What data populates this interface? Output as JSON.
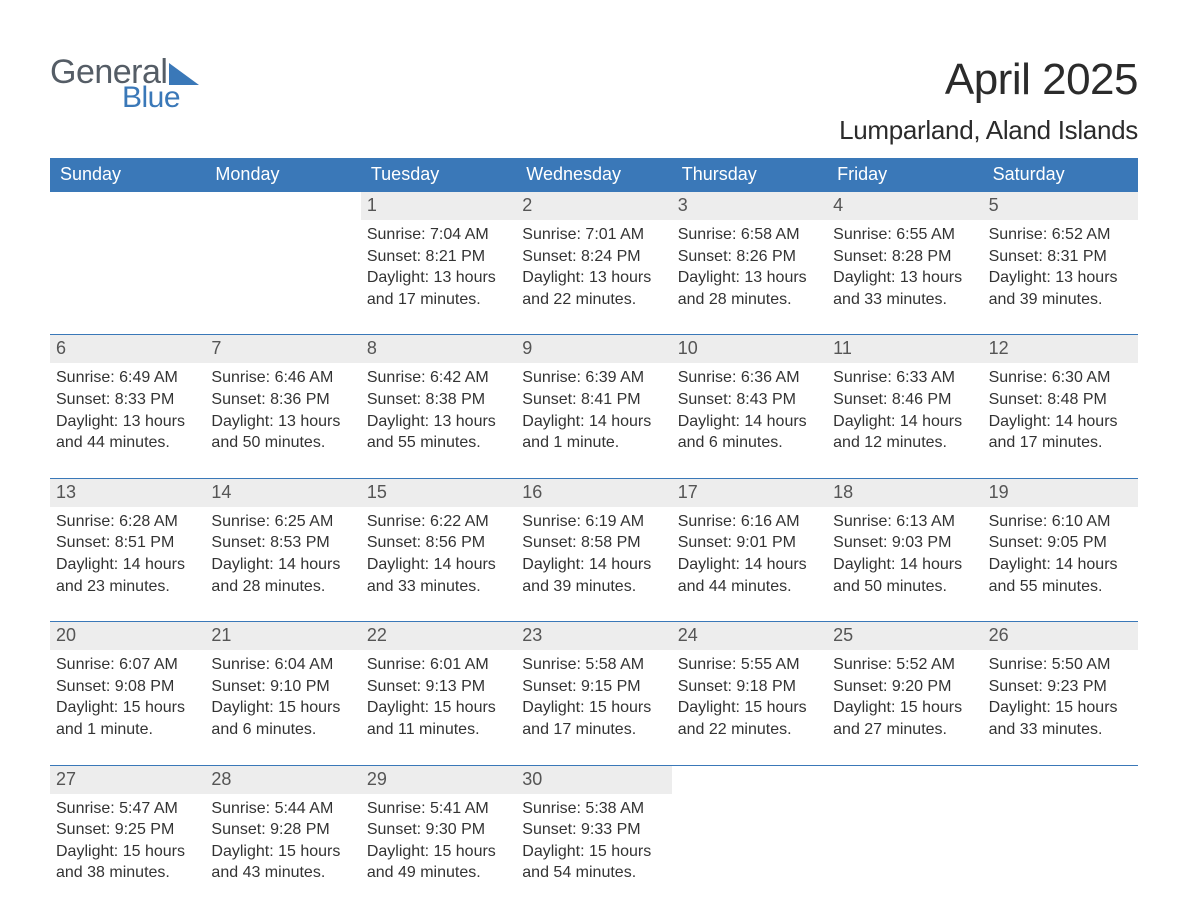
{
  "logo": {
    "word1": "General",
    "word2": "Blue"
  },
  "title": "April 2025",
  "location": "Lumparland, Aland Islands",
  "colors": {
    "brand_blue": "#3a78b8",
    "header_bg": "#3a78b8",
    "header_text": "#ffffff",
    "daynum_bg": "#ededed",
    "body_text": "#333333",
    "background": "#ffffff"
  },
  "layout": {
    "columns": 7,
    "weeks": 5,
    "font_family": "Arial",
    "title_fontsize": 44,
    "location_fontsize": 26,
    "header_fontsize": 18,
    "daynum_fontsize": 18,
    "body_fontsize": 16
  },
  "day_headers": [
    "Sunday",
    "Monday",
    "Tuesday",
    "Wednesday",
    "Thursday",
    "Friday",
    "Saturday"
  ],
  "labels": {
    "sunrise": "Sunrise:",
    "sunset": "Sunset:",
    "daylight": "Daylight:"
  },
  "weeks": [
    [
      null,
      null,
      {
        "n": "1",
        "sunrise": "7:04 AM",
        "sunset": "8:21 PM",
        "daylight": "13 hours and 17 minutes."
      },
      {
        "n": "2",
        "sunrise": "7:01 AM",
        "sunset": "8:24 PM",
        "daylight": "13 hours and 22 minutes."
      },
      {
        "n": "3",
        "sunrise": "6:58 AM",
        "sunset": "8:26 PM",
        "daylight": "13 hours and 28 minutes."
      },
      {
        "n": "4",
        "sunrise": "6:55 AM",
        "sunset": "8:28 PM",
        "daylight": "13 hours and 33 minutes."
      },
      {
        "n": "5",
        "sunrise": "6:52 AM",
        "sunset": "8:31 PM",
        "daylight": "13 hours and 39 minutes."
      }
    ],
    [
      {
        "n": "6",
        "sunrise": "6:49 AM",
        "sunset": "8:33 PM",
        "daylight": "13 hours and 44 minutes."
      },
      {
        "n": "7",
        "sunrise": "6:46 AM",
        "sunset": "8:36 PM",
        "daylight": "13 hours and 50 minutes."
      },
      {
        "n": "8",
        "sunrise": "6:42 AM",
        "sunset": "8:38 PM",
        "daylight": "13 hours and 55 minutes."
      },
      {
        "n": "9",
        "sunrise": "6:39 AM",
        "sunset": "8:41 PM",
        "daylight": "14 hours and 1 minute."
      },
      {
        "n": "10",
        "sunrise": "6:36 AM",
        "sunset": "8:43 PM",
        "daylight": "14 hours and 6 minutes."
      },
      {
        "n": "11",
        "sunrise": "6:33 AM",
        "sunset": "8:46 PM",
        "daylight": "14 hours and 12 minutes."
      },
      {
        "n": "12",
        "sunrise": "6:30 AM",
        "sunset": "8:48 PM",
        "daylight": "14 hours and 17 minutes."
      }
    ],
    [
      {
        "n": "13",
        "sunrise": "6:28 AM",
        "sunset": "8:51 PM",
        "daylight": "14 hours and 23 minutes."
      },
      {
        "n": "14",
        "sunrise": "6:25 AM",
        "sunset": "8:53 PM",
        "daylight": "14 hours and 28 minutes."
      },
      {
        "n": "15",
        "sunrise": "6:22 AM",
        "sunset": "8:56 PM",
        "daylight": "14 hours and 33 minutes."
      },
      {
        "n": "16",
        "sunrise": "6:19 AM",
        "sunset": "8:58 PM",
        "daylight": "14 hours and 39 minutes."
      },
      {
        "n": "17",
        "sunrise": "6:16 AM",
        "sunset": "9:01 PM",
        "daylight": "14 hours and 44 minutes."
      },
      {
        "n": "18",
        "sunrise": "6:13 AM",
        "sunset": "9:03 PM",
        "daylight": "14 hours and 50 minutes."
      },
      {
        "n": "19",
        "sunrise": "6:10 AM",
        "sunset": "9:05 PM",
        "daylight": "14 hours and 55 minutes."
      }
    ],
    [
      {
        "n": "20",
        "sunrise": "6:07 AM",
        "sunset": "9:08 PM",
        "daylight": "15 hours and 1 minute."
      },
      {
        "n": "21",
        "sunrise": "6:04 AM",
        "sunset": "9:10 PM",
        "daylight": "15 hours and 6 minutes."
      },
      {
        "n": "22",
        "sunrise": "6:01 AM",
        "sunset": "9:13 PM",
        "daylight": "15 hours and 11 minutes."
      },
      {
        "n": "23",
        "sunrise": "5:58 AM",
        "sunset": "9:15 PM",
        "daylight": "15 hours and 17 minutes."
      },
      {
        "n": "24",
        "sunrise": "5:55 AM",
        "sunset": "9:18 PM",
        "daylight": "15 hours and 22 minutes."
      },
      {
        "n": "25",
        "sunrise": "5:52 AM",
        "sunset": "9:20 PM",
        "daylight": "15 hours and 27 minutes."
      },
      {
        "n": "26",
        "sunrise": "5:50 AM",
        "sunset": "9:23 PM",
        "daylight": "15 hours and 33 minutes."
      }
    ],
    [
      {
        "n": "27",
        "sunrise": "5:47 AM",
        "sunset": "9:25 PM",
        "daylight": "15 hours and 38 minutes."
      },
      {
        "n": "28",
        "sunrise": "5:44 AM",
        "sunset": "9:28 PM",
        "daylight": "15 hours and 43 minutes."
      },
      {
        "n": "29",
        "sunrise": "5:41 AM",
        "sunset": "9:30 PM",
        "daylight": "15 hours and 49 minutes."
      },
      {
        "n": "30",
        "sunrise": "5:38 AM",
        "sunset": "9:33 PM",
        "daylight": "15 hours and 54 minutes."
      },
      null,
      null,
      null
    ]
  ]
}
